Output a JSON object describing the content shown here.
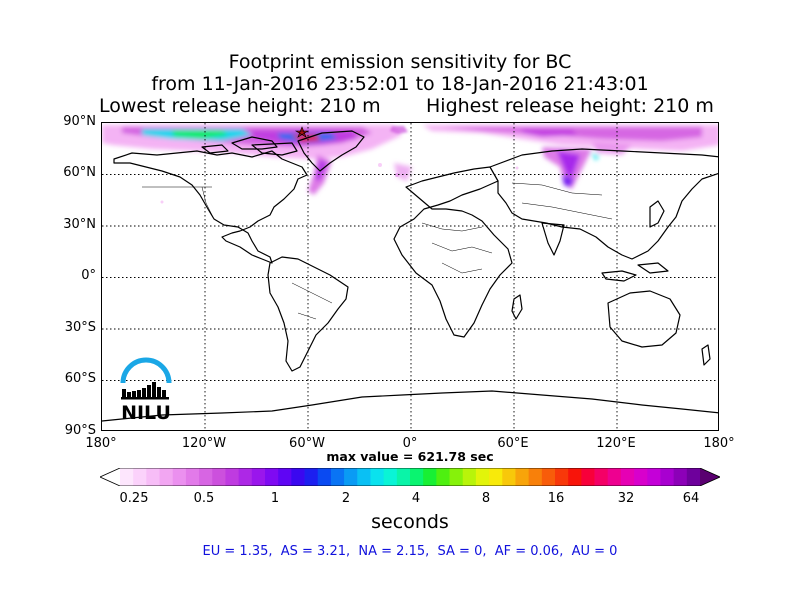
{
  "title": {
    "line1": "Footprint emission sensitivity for BC",
    "line2": "from 11-Jan-2016 23:52:01 to 18-Jan-2016 21:43:01",
    "lowest_release": "Lowest release height: 210 m",
    "highest_release": "Highest release height: 210 m"
  },
  "map": {
    "projection": "equirectangular",
    "lat_labels": [
      "90°N",
      "60°N",
      "30°N",
      "0°",
      "30°S",
      "60°S",
      "90°S"
    ],
    "lon_labels": [
      "180°",
      "120°W",
      "60°W",
      "0°",
      "60°E",
      "120°E",
      "180°"
    ],
    "gridlines": "dotted",
    "plume_regions": [
      "Arctic / northern Canada and Greenland",
      "northern Siberia"
    ]
  },
  "max_value_text": "max value = 621.78 sec",
  "colorbar": {
    "unit": "seconds",
    "tick_labels": [
      "0.25",
      "0.5",
      "1",
      "2",
      "4",
      "8",
      "16",
      "32",
      "64"
    ],
    "colors": [
      "#fde6fd",
      "#fbd2fb",
      "#f7bdf7",
      "#f2a6f2",
      "#eb90ef",
      "#e27ae9",
      "#d765e3",
      "#cc50dd",
      "#bf3be0",
      "#ad28e6",
      "#9a16ec",
      "#7f0af2",
      "#5f05f4",
      "#3a08f0",
      "#1c1ff0",
      "#0a4af2",
      "#0a74f4",
      "#0a9bf4",
      "#0ac0f4",
      "#0ae2ee",
      "#0af4d6",
      "#0af4a8",
      "#0af470",
      "#18f034",
      "#4ef010",
      "#86f20a",
      "#b8f40a",
      "#e2f40a",
      "#f8ea0a",
      "#f8c80a",
      "#f8a40a",
      "#f8800a",
      "#f85c0a",
      "#f8380a",
      "#f8140a",
      "#f8003a",
      "#f40066",
      "#ee0090",
      "#e600b4",
      "#d800cc",
      "#c400d8",
      "#a800d0",
      "#8c00b8",
      "#6e009c"
    ]
  },
  "region_stats": "EU = 1.35,  AS = 3.21,  NA = 2.15,  SA = 0,  AF = 0.06,  AU = 0",
  "logo": {
    "text": "NILU"
  }
}
